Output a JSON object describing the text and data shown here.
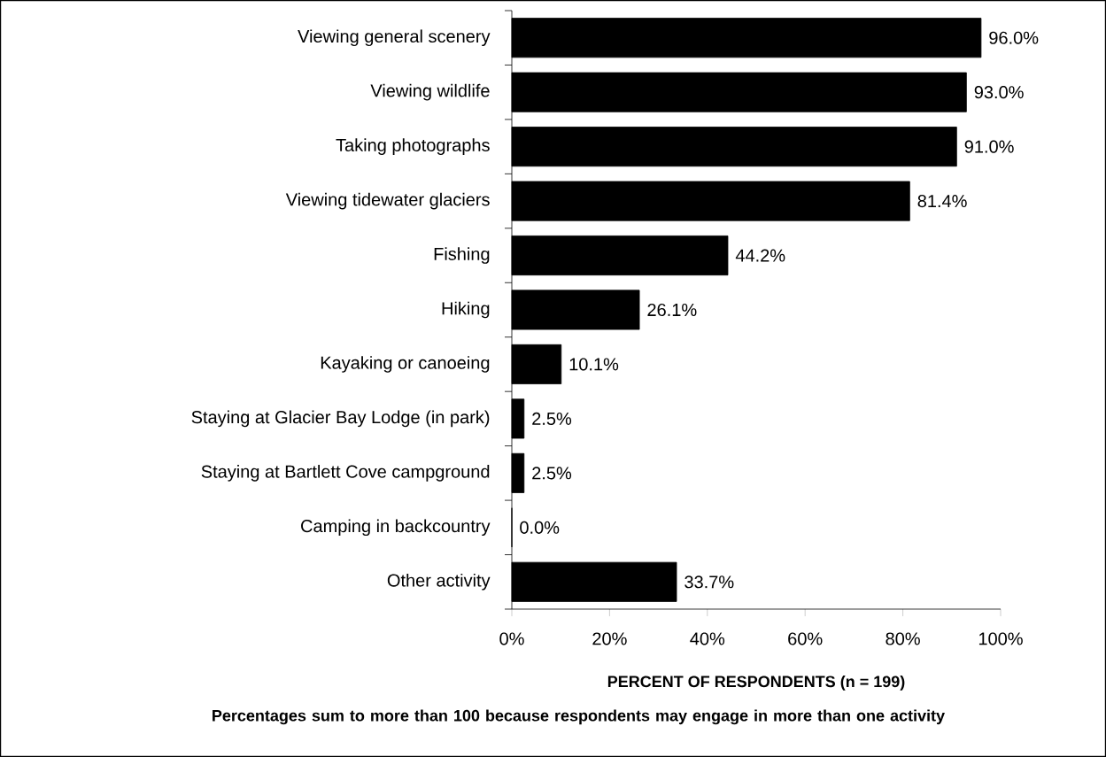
{
  "chart_data": {
    "type": "bar",
    "orientation": "horizontal",
    "categories": [
      "Viewing general scenery",
      "Viewing wildlife",
      "Taking photographs",
      "Viewing tidewater glaciers",
      "Fishing",
      "Hiking",
      "Kayaking or canoeing",
      "Staying at Glacier Bay Lodge (in park)",
      "Staying at Bartlett Cove campground",
      "Camping in backcountry",
      "Other activity"
    ],
    "values": [
      96.0,
      93.0,
      91.0,
      81.4,
      44.2,
      26.1,
      10.1,
      2.5,
      2.5,
      0.0,
      33.7
    ],
    "value_labels": [
      "96.0%",
      "93.0%",
      "91.0%",
      "81.4%",
      "44.2%",
      "26.1%",
      "10.1%",
      "2.5%",
      "2.5%",
      "0.0%",
      "33.7%"
    ],
    "color": "#000000",
    "xlim": [
      0,
      100
    ],
    "xticks": [
      {
        "value": 0,
        "label": "0%"
      },
      {
        "value": 20,
        "label": "20%"
      },
      {
        "value": 40,
        "label": "40%"
      },
      {
        "value": 60,
        "label": "60%"
      },
      {
        "value": 80,
        "label": "80%"
      },
      {
        "value": 100,
        "label": "100%"
      }
    ],
    "xlabel": "PERCENT OF RESPONDENTS (n = 199)",
    "annotations": [
      "Percentages sum to more than 100 because respondents may engage in more than one activity"
    ]
  }
}
